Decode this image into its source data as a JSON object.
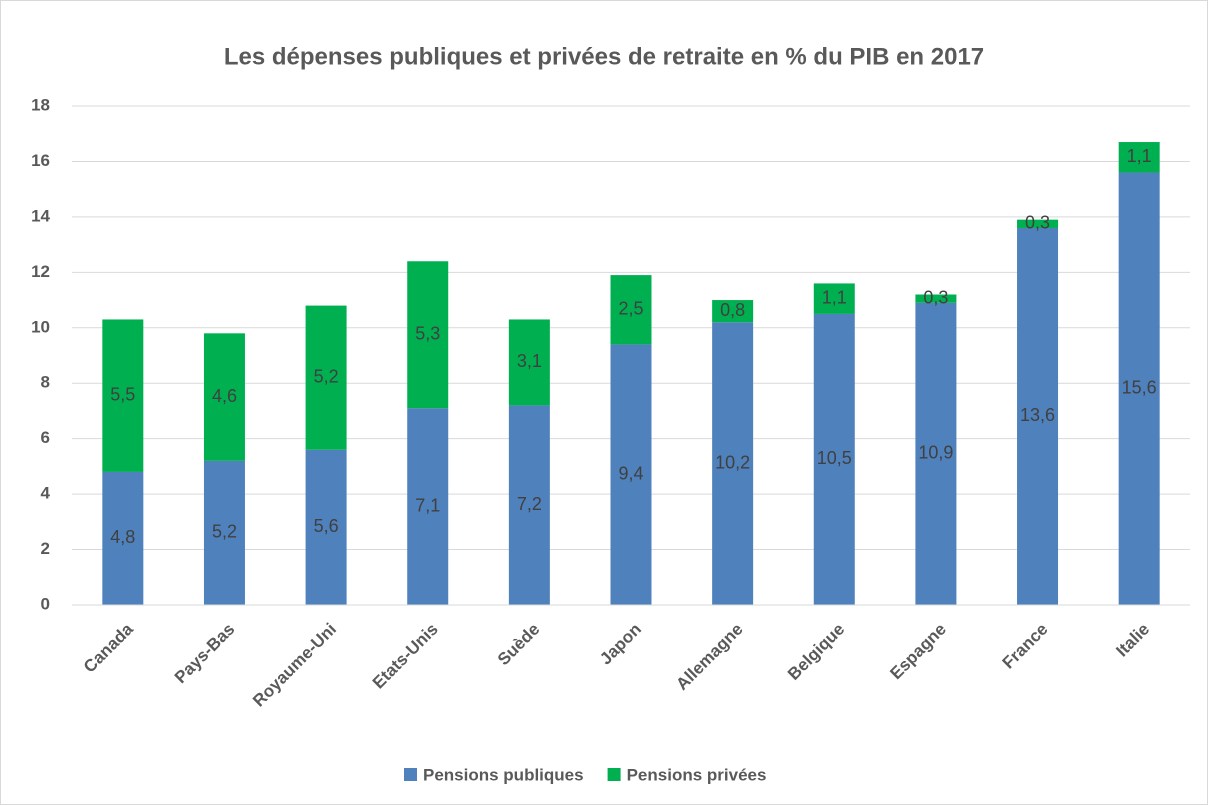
{
  "chart_data": {
    "type": "stacked_bar",
    "title": "Les dépenses publiques et privées de retraite en % du PIB en 2017",
    "categories": [
      "Canada",
      "Pays-Bas",
      "Royaume-Uni",
      "Etats-Unis",
      "Suède",
      "Japon",
      "Allemagne",
      "Belgique",
      "Espagne",
      "France",
      "Italie"
    ],
    "series": [
      {
        "name": "Pensions publiques",
        "color": "#4f81bd",
        "values": [
          4.8,
          5.2,
          5.6,
          7.1,
          7.2,
          9.4,
          10.2,
          10.5,
          10.9,
          13.6,
          15.6
        ],
        "value_labels": [
          "4,8",
          "5,2",
          "5,6",
          "7,1",
          "7,2",
          "9,4",
          "10,2",
          "10,5",
          "10,9",
          "13,6",
          "15,6"
        ]
      },
      {
        "name": "Pensions privées",
        "color": "#00b050",
        "values": [
          5.5,
          4.6,
          5.2,
          5.3,
          3.1,
          2.5,
          0.8,
          1.1,
          0.3,
          0.3,
          1.1
        ],
        "value_labels": [
          "5,5",
          "4,6",
          "5,2",
          "5,3",
          "3,1",
          "2,5",
          "0,8",
          "1,1",
          "0,3",
          "0,3",
          "1,1"
        ]
      }
    ],
    "ylim": [
      0,
      18
    ],
    "yticks": [
      0,
      2,
      4,
      6,
      8,
      10,
      12,
      14,
      16,
      18
    ],
    "grid": true,
    "legend": "bottom"
  }
}
